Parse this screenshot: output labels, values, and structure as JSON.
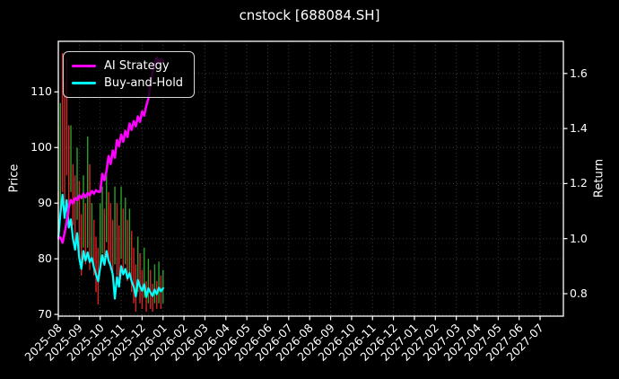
{
  "chart_data": {
    "type": "mixed",
    "subtypes": [
      "candlestick-range-bars",
      "line",
      "line"
    ],
    "title": "cnstock [688084.SH]",
    "ylabel_left": "Price",
    "ylabel_right": "Return",
    "grid": true,
    "background": "#000000",
    "text_color": "#ffffff",
    "x_tick_labels": [
      "2025-08",
      "2025-09",
      "2025-10",
      "2025-11",
      "2025-12",
      "2026-01",
      "2026-02",
      "2026-03",
      "2026-04",
      "2026-05",
      "2026-06",
      "2026-07",
      "2026-08",
      "2026-09",
      "2026-10",
      "2026-11",
      "2026-12",
      "2027-01",
      "2027-02",
      "2027-03",
      "2027-04",
      "2027-05",
      "2027-06",
      "2027-07"
    ],
    "price_ticks": [
      70,
      80,
      90,
      100,
      110
    ],
    "price_tick_labels": [
      "70",
      "80",
      "90",
      "100",
      "110"
    ],
    "price_axis_range": [
      69.7,
      119.1
    ],
    "return_ticks": [
      0.8,
      1.0,
      1.2,
      1.4,
      1.6
    ],
    "return_tick_labels": [
      "0.8",
      "1.0",
      "1.2",
      "1.4",
      "1.6"
    ],
    "return_axis_range": [
      0.7185,
      1.7168
    ],
    "x_axis_months_shown": 24,
    "x_months": [
      0.0,
      0.1,
      0.2,
      0.3,
      0.4,
      0.5,
      0.6,
      0.7,
      0.8,
      0.9,
      1.0,
      1.1,
      1.2,
      1.3,
      1.4,
      1.5,
      1.6,
      1.7,
      1.8,
      1.9,
      2.0,
      2.1,
      2.2,
      2.3,
      2.4,
      2.5,
      2.6,
      2.7,
      2.8,
      2.9,
      3.0,
      3.1,
      3.2,
      3.3,
      3.4,
      3.5,
      3.6,
      3.7,
      3.8,
      3.9,
      4.0,
      4.1,
      4.2,
      4.3,
      4.4,
      4.5,
      4.6,
      4.7,
      4.8,
      4.9,
      5.0
    ],
    "series": [
      {
        "name": "AI Strategy",
        "color": "#ff00ff",
        "axis": "return",
        "values": [
          1.0,
          1.005,
          0.985,
          1.02,
          1.06,
          1.115,
          1.14,
          1.128,
          1.148,
          1.14,
          1.157,
          1.147,
          1.163,
          1.15,
          1.166,
          1.157,
          1.173,
          1.163,
          1.176,
          1.17,
          1.17,
          1.235,
          1.212,
          1.245,
          1.3,
          1.271,
          1.32,
          1.294,
          1.358,
          1.336,
          1.378,
          1.352,
          1.392,
          1.369,
          1.418,
          1.395,
          1.427,
          1.408,
          1.444,
          1.424,
          1.462,
          1.447,
          1.483,
          1.509,
          1.56,
          1.607,
          1.63,
          1.658,
          1.639,
          1.653,
          1.645
        ]
      },
      {
        "name": "Buy-and-Hold",
        "color": "#00ffff",
        "axis": "return",
        "values": [
          1.0,
          1.09,
          1.16,
          1.075,
          1.14,
          1.04,
          1.07,
          1.0,
          0.96,
          1.02,
          0.93,
          0.89,
          0.955,
          0.92,
          0.95,
          0.915,
          0.93,
          0.895,
          0.87,
          0.845,
          0.895,
          0.94,
          0.905,
          0.955,
          0.92,
          0.9,
          0.87,
          0.782,
          0.86,
          0.825,
          0.9,
          0.87,
          0.89,
          0.855,
          0.875,
          0.845,
          0.825,
          0.79,
          0.85,
          0.825,
          0.81,
          0.835,
          0.788,
          0.82,
          0.805,
          0.792,
          0.815,
          0.798,
          0.822,
          0.808,
          0.82
        ]
      }
    ],
    "price_bars": {
      "axis": "price",
      "up_color": "#2ca02c",
      "down_color": "#d62728",
      "bar_format": [
        "low",
        "high",
        "direction"
      ],
      "bars": [
        [
          84,
          92,
          "d"
        ],
        [
          88,
          108,
          "u"
        ],
        [
          92,
          117,
          "d"
        ],
        [
          90,
          112,
          "d"
        ],
        [
          95,
          116,
          "d"
        ],
        [
          88,
          104,
          "d"
        ],
        [
          92,
          104,
          "u"
        ],
        [
          86,
          97,
          "d"
        ],
        [
          83,
          95,
          "d"
        ],
        [
          87,
          100,
          "u"
        ],
        [
          80,
          94,
          "d"
        ],
        [
          77,
          88,
          "d"
        ],
        [
          82,
          95,
          "u"
        ],
        [
          79,
          90,
          "d"
        ],
        [
          82,
          102,
          "u"
        ],
        [
          78,
          97,
          "d"
        ],
        [
          80,
          90,
          "u"
        ],
        [
          77,
          87,
          "d"
        ],
        [
          74,
          84,
          "d"
        ],
        [
          71.8,
          82,
          "d"
        ],
        [
          78,
          90,
          "u"
        ],
        [
          81,
          93,
          "u"
        ],
        [
          79,
          89,
          "d"
        ],
        [
          83,
          95,
          "u"
        ],
        [
          80,
          92,
          "d"
        ],
        [
          78,
          90,
          "d"
        ],
        [
          76,
          87,
          "d"
        ],
        [
          79,
          93,
          "u"
        ],
        [
          77,
          90,
          "d"
        ],
        [
          75,
          86,
          "d"
        ],
        [
          80,
          93,
          "u"
        ],
        [
          77,
          89,
          "d"
        ],
        [
          79,
          91,
          "u"
        ],
        [
          76,
          87,
          "d"
        ],
        [
          77,
          89,
          "u"
        ],
        [
          74,
          85,
          "d"
        ],
        [
          72,
          82,
          "d"
        ],
        [
          70.5,
          79,
          "d"
        ],
        [
          74,
          84,
          "u"
        ],
        [
          72,
          81,
          "d"
        ],
        [
          71,
          78,
          "d"
        ],
        [
          73,
          82,
          "u"
        ],
        [
          70.5,
          76,
          "d"
        ],
        [
          72,
          80,
          "u"
        ],
        [
          71,
          78,
          "d"
        ],
        [
          70.5,
          75.5,
          "d"
        ],
        [
          72,
          79,
          "u"
        ],
        [
          71,
          76,
          "d"
        ],
        [
          72,
          79.5,
          "u"
        ],
        [
          71,
          77,
          "d"
        ],
        [
          72,
          78,
          "u"
        ]
      ]
    },
    "legend": {
      "position": "upper-left",
      "items": [
        {
          "label": "AI Strategy",
          "color": "#ff00ff"
        },
        {
          "label": "Buy-and-Hold",
          "color": "#00ffff"
        }
      ]
    },
    "style": {
      "grid_color": "#3a3a3a",
      "spine_color": "#ffffff"
    }
  }
}
